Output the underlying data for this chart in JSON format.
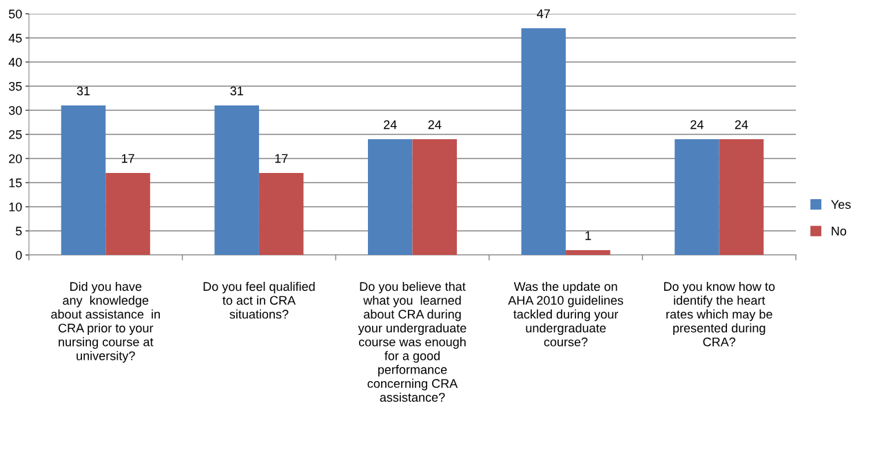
{
  "chart_data": {
    "type": "bar",
    "categories": [
      "Did you have\nany  knowledge\nabout assistance  in\nCRA prior to your\nnursing course at\nuniversity?",
      "Do you feel qualified\nto act in CRA\nsituations?",
      "Do you believe that\nwhat you  learned\nabout CRA during\nyour undergraduate\ncourse was enough\nfor a good\nperformance\nconcerning CRA\nassistance?",
      "Was the update on\nAHA 2010 guidelines\ntackled during your\nundergraduate\ncourse?",
      "Do you know how to\nidentify the heart\nrates which may be\npresented during\nCRA?"
    ],
    "series": [
      {
        "name": "Yes",
        "color": "#4f81bd",
        "values": [
          31,
          31,
          24,
          47,
          24
        ]
      },
      {
        "name": "No",
        "color": "#c0504d",
        "values": [
          17,
          17,
          24,
          1,
          24
        ]
      }
    ],
    "ylim": [
      0,
      50
    ],
    "yticks": [
      0,
      5,
      10,
      15,
      20,
      25,
      30,
      35,
      40,
      45,
      50
    ],
    "grid": "y",
    "legend": "right",
    "data_labels": true
  }
}
